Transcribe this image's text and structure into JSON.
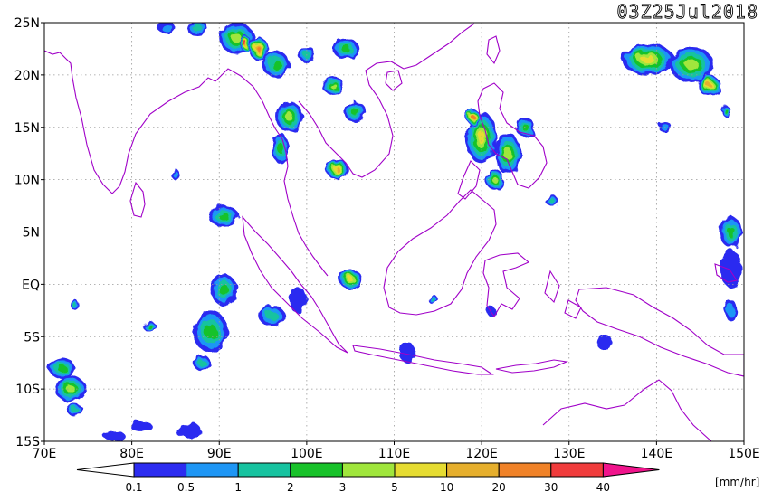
{
  "title": "03Z25Jul2018",
  "lat_labels": [
    "25N",
    "20N",
    "15N",
    "10N",
    "5N",
    "EQ",
    "5S",
    "10S",
    "15S"
  ],
  "lon_labels": [
    "70E",
    "80E",
    "90E",
    "100E",
    "110E",
    "120E",
    "130E",
    "140E",
    "150E"
  ],
  "legend": {
    "unit": "[mm/hr]",
    "ticks": [
      "0.1",
      "0.5",
      "1",
      "2",
      "3",
      "5",
      "10",
      "20",
      "30",
      "40"
    ],
    "colors": [
      "#2c2cf0",
      "#1e96f5",
      "#17c3a0",
      "#18c22a",
      "#a0e63c",
      "#e6dc32",
      "#e6af2d",
      "#f08228",
      "#f03c3c",
      "#f0148c"
    ]
  },
  "colors": {
    "coast": "#a000c8",
    "grid": "#999999"
  },
  "precip": [
    {
      "lon": 111.5,
      "lat": -6.5,
      "w": 1.8,
      "h": 2.0,
      "l": 1
    },
    {
      "lon": 92,
      "lat": 23.5,
      "w": 4,
      "h": 3,
      "l": 5
    },
    {
      "lon": 96.5,
      "lat": 21,
      "w": 3.2,
      "h": 2.5,
      "l": 4
    },
    {
      "lon": 94.5,
      "lat": 22.5,
      "w": 2.2,
      "h": 2.2,
      "l": 8
    },
    {
      "lon": 87.5,
      "lat": 24.5,
      "w": 2.5,
      "h": 1.5,
      "l": 3
    },
    {
      "lon": 84,
      "lat": 24.5,
      "w": 2,
      "h": 1.2,
      "l": 2
    },
    {
      "lon": 104.5,
      "lat": 22.5,
      "w": 3,
      "h": 2,
      "l": 4
    },
    {
      "lon": 100,
      "lat": 22,
      "w": 2,
      "h": 1.5,
      "l": 3
    },
    {
      "lon": 103,
      "lat": 19,
      "w": 2.5,
      "h": 1.8,
      "l": 5
    },
    {
      "lon": 98,
      "lat": 16,
      "w": 3,
      "h": 3,
      "l": 5
    },
    {
      "lon": 105.5,
      "lat": 16.5,
      "w": 2.5,
      "h": 2,
      "l": 4
    },
    {
      "lon": 103.5,
      "lat": 11,
      "w": 2.5,
      "h": 2,
      "l": 7
    },
    {
      "lon": 97,
      "lat": 13,
      "w": 1.8,
      "h": 3,
      "l": 4
    },
    {
      "lon": 120,
      "lat": 14,
      "w": 3.5,
      "h": 5,
      "l": 6
    },
    {
      "lon": 119,
      "lat": 16,
      "w": 1.5,
      "h": 1.5,
      "l": 8
    },
    {
      "lon": 123,
      "lat": 12.5,
      "w": 3,
      "h": 4,
      "l": 5
    },
    {
      "lon": 125,
      "lat": 15,
      "w": 2,
      "h": 2,
      "l": 4
    },
    {
      "lon": 121.5,
      "lat": 10,
      "w": 2,
      "h": 2,
      "l": 5
    },
    {
      "lon": 139,
      "lat": 21.5,
      "w": 6,
      "h": 3,
      "l": 6
    },
    {
      "lon": 144,
      "lat": 21,
      "w": 5,
      "h": 3.5,
      "l": 5
    },
    {
      "lon": 146,
      "lat": 19,
      "w": 2.5,
      "h": 2,
      "l": 7
    },
    {
      "lon": 148,
      "lat": 16.5,
      "w": 1,
      "h": 1,
      "l": 4
    },
    {
      "lon": 141,
      "lat": 15,
      "w": 1.5,
      "h": 1,
      "l": 2
    },
    {
      "lon": 148.5,
      "lat": 5,
      "w": 2.5,
      "h": 3,
      "l": 4
    },
    {
      "lon": 148.5,
      "lat": 1.5,
      "w": 2.5,
      "h": 3.5,
      "l": 1
    },
    {
      "lon": 148.5,
      "lat": -2.5,
      "w": 1.5,
      "h": 2,
      "l": 2
    },
    {
      "lon": 134,
      "lat": -5.5,
      "w": 1.8,
      "h": 1.5,
      "l": 1
    },
    {
      "lon": 128,
      "lat": 8,
      "w": 1.5,
      "h": 1,
      "l": 3
    },
    {
      "lon": 90.5,
      "lat": 6.5,
      "w": 3.5,
      "h": 2,
      "l": 4
    },
    {
      "lon": 85,
      "lat": 10.5,
      "w": 1,
      "h": 1,
      "l": 2
    },
    {
      "lon": 90.5,
      "lat": -0.5,
      "w": 3,
      "h": 3,
      "l": 4
    },
    {
      "lon": 89,
      "lat": -4.5,
      "w": 4,
      "h": 4,
      "l": 4
    },
    {
      "lon": 88,
      "lat": -7.5,
      "w": 2,
      "h": 1.5,
      "l": 3
    },
    {
      "lon": 96,
      "lat": -3,
      "w": 3,
      "h": 2,
      "l": 3
    },
    {
      "lon": 99,
      "lat": -1.5,
      "w": 2,
      "h": 2.5,
      "l": 1
    },
    {
      "lon": 105,
      "lat": 0.5,
      "w": 2.5,
      "h": 2,
      "l": 6
    },
    {
      "lon": 82,
      "lat": -4,
      "w": 1.5,
      "h": 1,
      "l": 4
    },
    {
      "lon": 72,
      "lat": -8,
      "w": 3,
      "h": 2,
      "l": 4
    },
    {
      "lon": 73,
      "lat": -10,
      "w": 3.5,
      "h": 2.5,
      "l": 5
    },
    {
      "lon": 73.5,
      "lat": -12,
      "w": 2,
      "h": 1,
      "l": 3
    },
    {
      "lon": 81,
      "lat": -13.5,
      "w": 2.5,
      "h": 1,
      "l": 1
    },
    {
      "lon": 86.5,
      "lat": -14,
      "w": 3,
      "h": 1.5,
      "l": 1
    },
    {
      "lon": 78,
      "lat": -14.5,
      "w": 2.5,
      "h": 1,
      "l": 1
    },
    {
      "lon": 73.5,
      "lat": -2,
      "w": 1,
      "h": 1,
      "l": 3
    },
    {
      "lon": 114.5,
      "lat": -1.5,
      "w": 1.2,
      "h": 0.8,
      "l": 3
    },
    {
      "lon": 121,
      "lat": -2.5,
      "w": 1,
      "h": 1,
      "l": 1
    },
    {
      "lon": 93,
      "lat": 23,
      "w": 1.2,
      "h": 1.5,
      "l": 9
    }
  ]
}
